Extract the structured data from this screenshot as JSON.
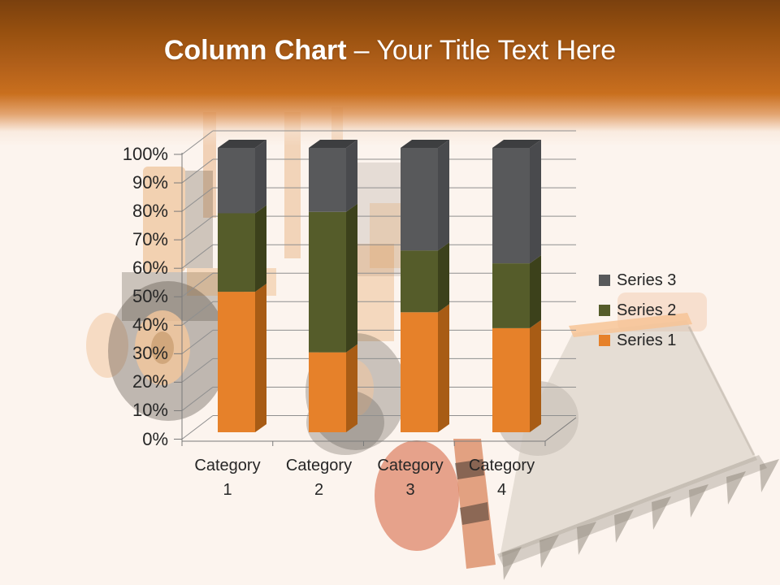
{
  "header": {
    "title_bold": "Column Chart",
    "title_regular": "– Your Title Text Here"
  },
  "colors": {
    "header_orange": "#c96f1e",
    "header_orange_dark": "#7a400e",
    "slide_background": "#fcf4ee",
    "axis_text": "#262626",
    "gridline": "#8f8f8f",
    "series1_orange": "#e6812a",
    "series2_olive": "#555c2a",
    "series3_gray": "#58595b"
  },
  "chart_data": {
    "type": "bar",
    "subtype": "100-percent-stacked-3d-column",
    "title": "",
    "unit": "percent of total",
    "categories": [
      "Category 1",
      "Category 2",
      "Category 3",
      "Category 4"
    ],
    "series": [
      {
        "name": "Series 1",
        "color": "#e6812a",
        "side_color": "#a85c15",
        "values": [
          49.4,
          28.1,
          42.2,
          36.6
        ]
      },
      {
        "name": "Series 2",
        "color": "#555c2a",
        "side_color": "#3c411b",
        "values": [
          27.6,
          49.4,
          21.7,
          22.8
        ]
      },
      {
        "name": "Series 3",
        "color": "#58595b",
        "side_color": "#494a4d",
        "top_color": "#3d3e40",
        "values": [
          23.0,
          22.5,
          36.1,
          40.6
        ]
      }
    ],
    "y_axis": {
      "tick_labels": [
        "0%",
        "10%",
        "20%",
        "30%",
        "40%",
        "50%",
        "60%",
        "70%",
        "80%",
        "90%",
        "100%"
      ],
      "min": 0,
      "max": 100,
      "grid": true
    },
    "legend": {
      "position": "right",
      "entries": [
        "Series 3",
        "Series 2",
        "Series 1"
      ]
    }
  }
}
